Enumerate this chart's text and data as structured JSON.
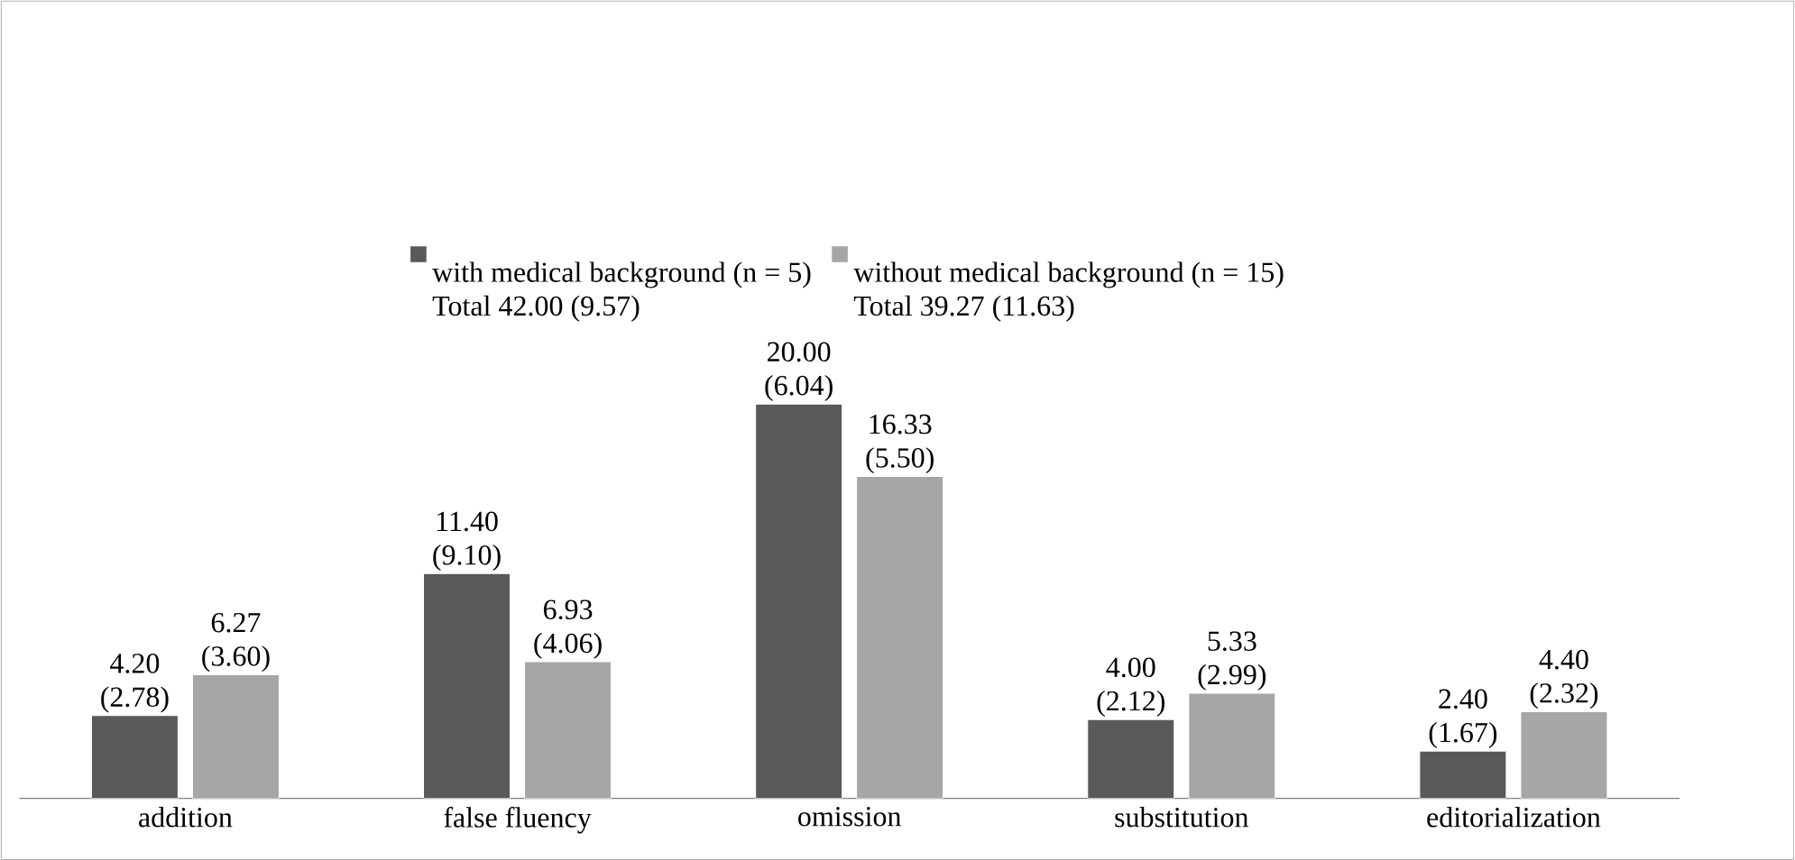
{
  "chart_data": {
    "type": "bar",
    "categories": [
      "addition",
      "false fluency",
      "omission",
      "substitution",
      "editorialization"
    ],
    "series": [
      {
        "name": "with medical background (n = 5)",
        "color": "#595959",
        "values": [
          4.2,
          11.4,
          20.0,
          4.0,
          2.4
        ],
        "value_labels": [
          "4.20 (2.78)",
          "11.40 (9.10)",
          "20.00 (6.04)",
          "4.00 (2.12)",
          "2.40 (1.67)"
        ]
      },
      {
        "name": "without medical background (n = 15)",
        "color": "#a6a6a6",
        "values": [
          6.27,
          6.93,
          16.33,
          5.33,
          4.4
        ],
        "value_labels": [
          "6.27 (3.60)",
          "6.93 (4.06)",
          "16.33 (5.50)",
          "5.33 (2.99)",
          "4.40 (2.32)"
        ]
      }
    ],
    "annotations": [
      "Total 42.00 (9.57)",
      "Total 39.27 (11.63)"
    ],
    "legend": "top",
    "grid": false,
    "tick_labels": "x"
  }
}
